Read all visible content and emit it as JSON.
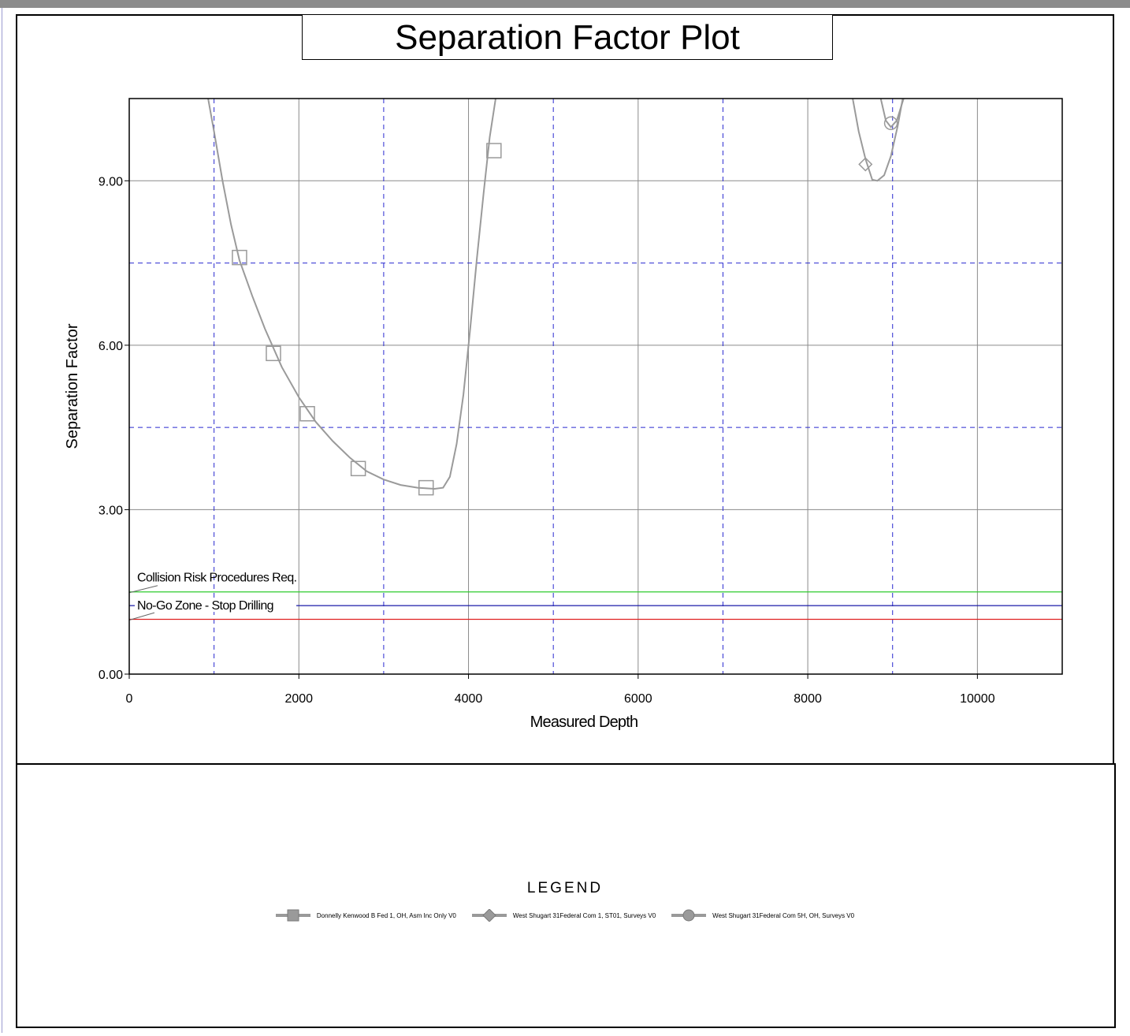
{
  "chart_data": {
    "type": "line",
    "title": "Separation Factor Plot",
    "xlabel": "Measured Depth",
    "ylabel": "Separation Factor",
    "xlim": [
      0,
      11000
    ],
    "ylim": [
      0,
      10.5
    ],
    "x_ticks": [
      0,
      2000,
      4000,
      6000,
      8000,
      10000
    ],
    "x_tick_labels": [
      "0",
      "2000",
      "4000",
      "6000",
      "8000",
      "10000"
    ],
    "y_ticks": [
      0,
      3,
      6,
      9
    ],
    "y_tick_labels": [
      "0.00",
      "3.00",
      "6.00",
      "9.00"
    ],
    "x_dashed_gridlines": [
      1000,
      3000,
      5000,
      7000,
      9000,
      11000
    ],
    "y_dashed_gridlines": [
      4.5,
      7.5
    ],
    "grid": true,
    "series": [
      {
        "name": "Donnelly Kenwood B Fed 1, OH, Asm Inc Only V0",
        "marker": "square",
        "points": [
          [
            930,
            10.5
          ],
          [
            1000,
            9.9
          ],
          [
            1100,
            9.0
          ],
          [
            1200,
            8.2
          ],
          [
            1300,
            7.55
          ],
          [
            1450,
            6.9
          ],
          [
            1600,
            6.3
          ],
          [
            1800,
            5.6
          ],
          [
            2000,
            5.05
          ],
          [
            2200,
            4.6
          ],
          [
            2400,
            4.25
          ],
          [
            2600,
            3.95
          ],
          [
            2800,
            3.7
          ],
          [
            3000,
            3.55
          ],
          [
            3200,
            3.45
          ],
          [
            3400,
            3.4
          ],
          [
            3600,
            3.38
          ],
          [
            3700,
            3.4
          ],
          [
            3780,
            3.6
          ],
          [
            3860,
            4.2
          ],
          [
            3940,
            5.1
          ],
          [
            4020,
            6.3
          ],
          [
            4100,
            7.6
          ],
          [
            4180,
            8.8
          ],
          [
            4250,
            9.8
          ],
          [
            4320,
            10.5
          ]
        ],
        "marker_points": [
          [
            1300,
            7.6
          ],
          [
            1700,
            5.85
          ],
          [
            2100,
            4.75
          ],
          [
            2700,
            3.75
          ],
          [
            3500,
            3.4
          ],
          [
            4300,
            9.55
          ]
        ]
      },
      {
        "name": "West Shugart 31Federal Com 1, ST01, Surveys V0",
        "marker": "diamond",
        "points": [
          [
            8530,
            10.5
          ],
          [
            8600,
            9.9
          ],
          [
            8680,
            9.4
          ],
          [
            8760,
            9.02
          ],
          [
            8820,
            9.0
          ],
          [
            8900,
            9.1
          ],
          [
            8980,
            9.45
          ],
          [
            9060,
            10.0
          ],
          [
            9120,
            10.5
          ]
        ],
        "marker_points": [
          [
            8680,
            9.3
          ]
        ]
      },
      {
        "name": "West Shugart 31Federal Com 5H, OH, Surveys V0",
        "marker": "circle",
        "points": [
          [
            8860,
            10.5
          ],
          [
            8920,
            10.1
          ],
          [
            8980,
            9.98
          ],
          [
            9050,
            10.1
          ],
          [
            9130,
            10.5
          ]
        ],
        "marker_points": [
          [
            8980,
            10.05
          ]
        ]
      }
    ],
    "reference_lines": [
      {
        "label": "Collision Risk Procedures Req.",
        "y": 1.5,
        "color": "#2ecc2e"
      },
      {
        "label": "No-Go Zone - Stop Drilling",
        "y": 1.25,
        "color": "#1a1aa8"
      },
      {
        "label": "",
        "y": 1.0,
        "color": "#e02020"
      }
    ],
    "legend": {
      "title": "LEGEND",
      "placement": "bottom"
    },
    "series_color": "#9a9a9a"
  }
}
